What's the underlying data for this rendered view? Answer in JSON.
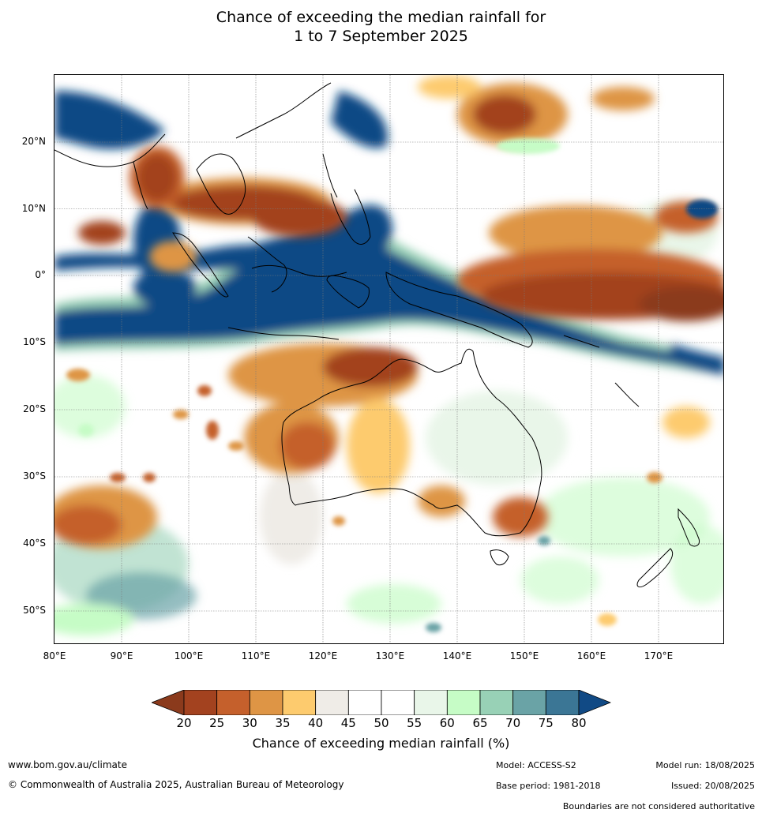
{
  "title_line1": "Chance of exceeding the median rainfall for",
  "title_line2": "1 to 7 September 2025",
  "lat_ticks": [
    "20°N",
    "10°N",
    "0°",
    "10°S",
    "20°S",
    "30°S",
    "40°S",
    "50°S"
  ],
  "lon_ticks": [
    "80°E",
    "90°E",
    "100°E",
    "110°E",
    "120°E",
    "130°E",
    "140°E",
    "150°E",
    "160°E",
    "170°E"
  ],
  "colorbar": {
    "ticks": [
      "20",
      "25",
      "30",
      "35",
      "40",
      "45",
      "50",
      "55",
      "60",
      "65",
      "70",
      "75",
      "80"
    ],
    "colors": [
      "#a3421f",
      "#c5602c",
      "#de9545",
      "#fdcb6e",
      "#efece7",
      "#ffffff",
      "#ffffff",
      "#e9f6e9",
      "#c6fcc6",
      "#98d1b6",
      "#6aa3a6",
      "#3b7695"
    ],
    "under_color": "#8b3a1c",
    "over_color": "#114a85",
    "label": "Chance of exceeding median rainfall (%)"
  },
  "footer": {
    "website": "www.bom.gov.au/climate",
    "copyright": "© Commonwealth of Australia 2025, Australian Bureau of Meteorology",
    "model": "Model: ACCESS-S2",
    "base_period": "Base period: 1981-2018",
    "model_run": "Model run: 18/08/2025",
    "issued": "Issued: 20/08/2025",
    "disclaimer": "Boundaries are not considered authoritative"
  }
}
